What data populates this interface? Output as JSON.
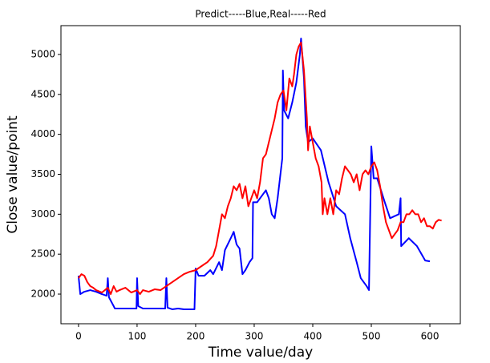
{
  "chart_data": {
    "type": "line",
    "title": "Predict-----Blue,Real-----Red",
    "xlabel": "Time value/day",
    "ylabel": "Close value/point",
    "xlim": [
      -30,
      652
    ],
    "ylim": [
      1629,
      5361
    ],
    "xticks": [
      0,
      100,
      200,
      300,
      400,
      500,
      600
    ],
    "yticks": [
      2000,
      2500,
      3000,
      3500,
      4000,
      4500,
      5000
    ],
    "series": [
      {
        "name": "Predict",
        "color": "#0000ff",
        "x": [
          0,
          3,
          10,
          20,
          30,
          40,
          48,
          50,
          52,
          60,
          62,
          70,
          80,
          90,
          99,
          100,
          102,
          110,
          120,
          130,
          140,
          148,
          150,
          152,
          160,
          170,
          180,
          190,
          198,
          200,
          205,
          215,
          225,
          230,
          240,
          245,
          250,
          260,
          265,
          270,
          275,
          280,
          285,
          292,
          297,
          298,
          305,
          315,
          320,
          325,
          330,
          335,
          340,
          348,
          349,
          351,
          358,
          365,
          372,
          378,
          380,
          385,
          388,
          392,
          400,
          414,
          427,
          440,
          455,
          464,
          475,
          482,
          492,
          496,
          500,
          504,
          510,
          523,
          532,
          547,
          550,
          551,
          564,
          578,
          592,
          600
        ],
        "values": [
          2230,
          2000,
          2030,
          2050,
          2030,
          2000,
          1980,
          2200,
          1960,
          1850,
          1820,
          1820,
          1820,
          1820,
          1820,
          2200,
          1850,
          1820,
          1820,
          1820,
          1820,
          1820,
          2200,
          1830,
          1810,
          1820,
          1810,
          1810,
          1810,
          2320,
          2230,
          2230,
          2300,
          2250,
          2400,
          2300,
          2550,
          2700,
          2780,
          2620,
          2570,
          2250,
          2300,
          2400,
          2450,
          3150,
          3150,
          3250,
          3300,
          3200,
          3000,
          2950,
          3200,
          3700,
          4800,
          4300,
          4200,
          4400,
          4650,
          5000,
          5200,
          4700,
          4100,
          3900,
          3950,
          3800,
          3400,
          3100,
          3000,
          2700,
          2400,
          2200,
          2100,
          2050,
          3850,
          3450,
          3450,
          3150,
          2950,
          3000,
          3200,
          2600,
          2700,
          2600,
          2420,
          2410
        ]
      },
      {
        "name": "Real",
        "color": "#ff0000",
        "x": [
          0,
          5,
          10,
          15,
          20,
          25,
          30,
          40,
          50,
          55,
          60,
          65,
          70,
          80,
          90,
          100,
          105,
          110,
          120,
          130,
          140,
          150,
          160,
          170,
          180,
          190,
          200,
          210,
          220,
          230,
          235,
          240,
          245,
          250,
          255,
          260,
          265,
          270,
          275,
          280,
          285,
          290,
          295,
          300,
          305,
          310,
          315,
          320,
          325,
          330,
          335,
          340,
          345,
          350,
          355,
          360,
          365,
          368,
          372,
          376,
          380,
          385,
          390,
          392,
          395,
          400,
          405,
          410,
          415,
          417,
          420,
          425,
          430,
          435,
          440,
          445,
          450,
          455,
          460,
          465,
          470,
          475,
          480,
          485,
          490,
          495,
          500,
          505,
          510,
          515,
          520,
          525,
          530,
          535,
          540,
          545,
          550,
          555,
          560,
          565,
          570,
          575,
          580,
          585,
          590,
          595,
          600,
          605,
          610,
          615,
          620
        ],
        "values": [
          2200,
          2250,
          2230,
          2150,
          2100,
          2080,
          2050,
          2020,
          2080,
          2000,
          2100,
          2030,
          2050,
          2080,
          2020,
          2050,
          2000,
          2050,
          2030,
          2060,
          2050,
          2100,
          2150,
          2200,
          2250,
          2280,
          2300,
          2350,
          2400,
          2480,
          2600,
          2800,
          3000,
          2950,
          3100,
          3200,
          3350,
          3300,
          3380,
          3200,
          3350,
          3100,
          3200,
          3300,
          3200,
          3400,
          3700,
          3750,
          3900,
          4050,
          4200,
          4400,
          4500,
          4550,
          4300,
          4700,
          4600,
          4750,
          5000,
          5100,
          5150,
          4800,
          4200,
          3800,
          4100,
          3900,
          3700,
          3600,
          3400,
          3000,
          3200,
          3000,
          3200,
          3000,
          3300,
          3250,
          3450,
          3600,
          3550,
          3500,
          3400,
          3500,
          3300,
          3500,
          3550,
          3500,
          3600,
          3650,
          3550,
          3350,
          3100,
          2900,
          2800,
          2700,
          2750,
          2800,
          2900,
          2900,
          3000,
          3000,
          3050,
          3000,
          3000,
          2900,
          2950,
          2850,
          2850,
          2820,
          2900,
          2930,
          2920
        ]
      }
    ]
  }
}
